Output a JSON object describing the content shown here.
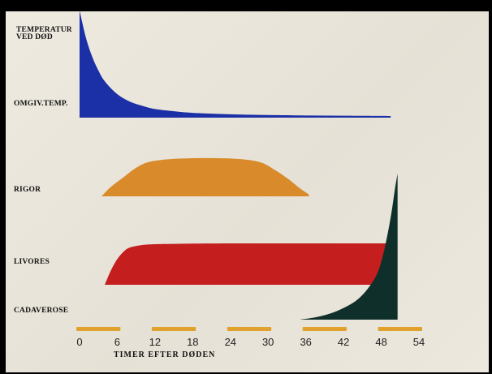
{
  "chart_data": {
    "type": "area",
    "title": "",
    "xlabel": "TIMER EFTER DØDEN",
    "ylabel": "",
    "xlim": [
      0,
      54
    ],
    "x_ticks": [
      0,
      6,
      12,
      18,
      24,
      30,
      36,
      42,
      48,
      54
    ],
    "series": [
      {
        "name": "TEMPERATUR VED DØD",
        "baseline_label": "OMGIV.TEMP.",
        "color": "#1b2fa6",
        "x": [
          0,
          1,
          2,
          3,
          4,
          6,
          8,
          10,
          12,
          15,
          18,
          22,
          26,
          30,
          36,
          42,
          48,
          49.5
        ],
        "values": [
          1.0,
          0.75,
          0.57,
          0.44,
          0.34,
          0.22,
          0.15,
          0.11,
          0.08,
          0.06,
          0.045,
          0.035,
          0.028,
          0.024,
          0.02,
          0.018,
          0.016,
          0.015
        ]
      },
      {
        "name": "RIGOR",
        "color": "#d98a2a",
        "x": [
          3.5,
          5,
          7,
          9,
          11,
          14,
          18,
          22,
          26,
          29,
          31,
          33,
          35,
          36.5
        ],
        "values": [
          0.0,
          0.25,
          0.5,
          0.75,
          0.9,
          0.97,
          1.0,
          1.0,
          0.97,
          0.88,
          0.7,
          0.48,
          0.22,
          0.05
        ]
      },
      {
        "name": "LIVORES",
        "color": "#c41e1e",
        "x": [
          4,
          5,
          6,
          7,
          8,
          10,
          12,
          16,
          24,
          36,
          48,
          50
        ],
        "values": [
          0.0,
          0.35,
          0.62,
          0.8,
          0.9,
          0.96,
          0.98,
          0.99,
          1.0,
          1.0,
          1.0,
          1.0
        ]
      },
      {
        "name": "CADAVEROSE",
        "color": "#0e2f2a",
        "x": [
          35,
          38,
          41,
          44,
          46,
          47.5,
          48.5,
          49.5,
          50.2,
          50.6
        ],
        "values": [
          0.0,
          0.02,
          0.06,
          0.13,
          0.22,
          0.33,
          0.48,
          0.7,
          0.9,
          1.0
        ]
      }
    ]
  }
}
